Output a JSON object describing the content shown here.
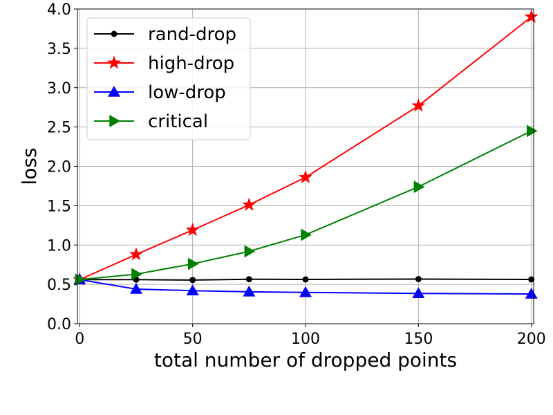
{
  "chart_data": {
    "type": "line",
    "title": "",
    "xlabel": "total number of dropped points",
    "ylabel": "loss",
    "xlim": [
      -1,
      201
    ],
    "ylim": [
      0.0,
      4.0
    ],
    "xticks": [
      0,
      50,
      100,
      150,
      200
    ],
    "xtick_labels": [
      "0",
      "50",
      "100",
      "150",
      "200"
    ],
    "yticks": [
      0.0,
      0.5,
      1.0,
      1.5,
      2.0,
      2.5,
      3.0,
      3.5,
      4.0
    ],
    "ytick_labels": [
      "0.0",
      "0.5",
      "1.0",
      "1.5",
      "2.0",
      "2.5",
      "3.0",
      "3.5",
      "4.0"
    ],
    "grid": true,
    "legend_position": "top-left",
    "x": [
      0,
      25,
      50,
      75,
      100,
      150,
      200
    ],
    "series": [
      {
        "name": "rand-drop",
        "color": "#000000",
        "marker": "circle",
        "values": [
          0.56,
          0.56,
          0.555,
          0.565,
          0.563,
          0.567,
          0.563
        ]
      },
      {
        "name": "high-drop",
        "color": "#ff0000",
        "marker": "star",
        "values": [
          0.56,
          0.88,
          1.19,
          1.51,
          1.86,
          2.77,
          3.9
        ]
      },
      {
        "name": "low-drop",
        "color": "#0000ff",
        "marker": "triangle-up",
        "values": [
          0.56,
          0.44,
          0.42,
          0.405,
          0.398,
          0.385,
          0.378
        ]
      },
      {
        "name": "critical",
        "color": "#008000",
        "marker": "triangle-right",
        "values": [
          0.56,
          0.63,
          0.76,
          0.92,
          1.13,
          1.74,
          2.45
        ]
      }
    ]
  }
}
